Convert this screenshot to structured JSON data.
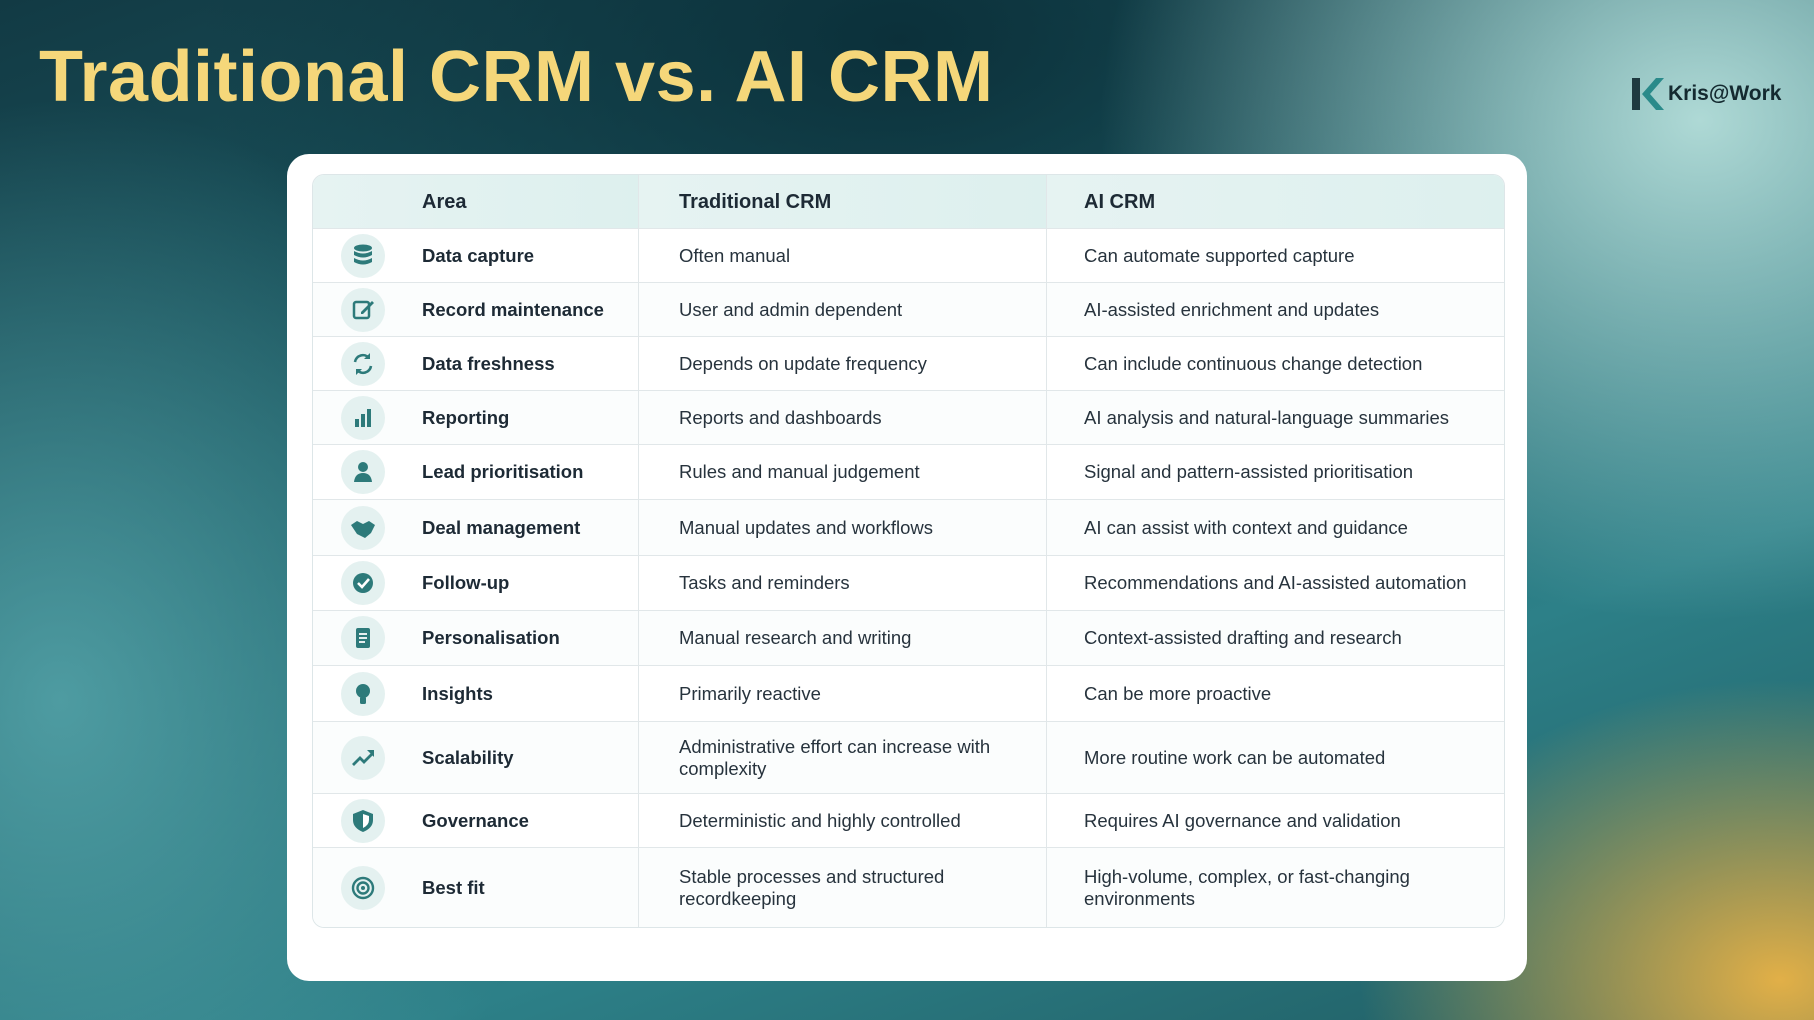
{
  "header": {
    "title": "Traditional CRM vs. AI CRM",
    "logo": "Kris@Work"
  },
  "table": {
    "headers": [
      "Area",
      "Traditional CRM",
      "AI CRM"
    ],
    "rows": [
      [
        "Data capture",
        "Often manual",
        "Can automate supported capture"
      ],
      [
        "Record maintenance",
        "User and admin dependent",
        "AI-assisted enrichment and updates"
      ],
      [
        "Data freshness",
        "Depends on update frequency",
        "Can include continuous change detection"
      ],
      [
        "Reporting",
        "Reports and dashboards",
        "AI analysis and natural-language summaries"
      ],
      [
        "Lead prioritisation",
        "Rules and manual judgement",
        "Signal and pattern-assisted prioritisation"
      ],
      [
        "Deal management",
        "Manual updates and workflows",
        "AI can assist with context and guidance"
      ],
      [
        "Follow-up",
        "Tasks and reminders",
        "Recommendations and AI-assisted automation"
      ],
      [
        "Personalisation",
        "Manual research and writing",
        "Context-assisted drafting and research"
      ],
      [
        "Insights",
        "Primarily reactive",
        "Can be more proactive"
      ],
      [
        "Scalability",
        "Administrative effort can increase with complexity",
        "More routine work can be automated"
      ],
      [
        "Governance",
        "Deterministic and highly controlled",
        "Requires AI governance and validation"
      ],
      [
        "Best fit",
        "Stable processes and structured recordkeeping",
        "High-volume, complex, or fast-changing environments"
      ]
    ]
  }
}
